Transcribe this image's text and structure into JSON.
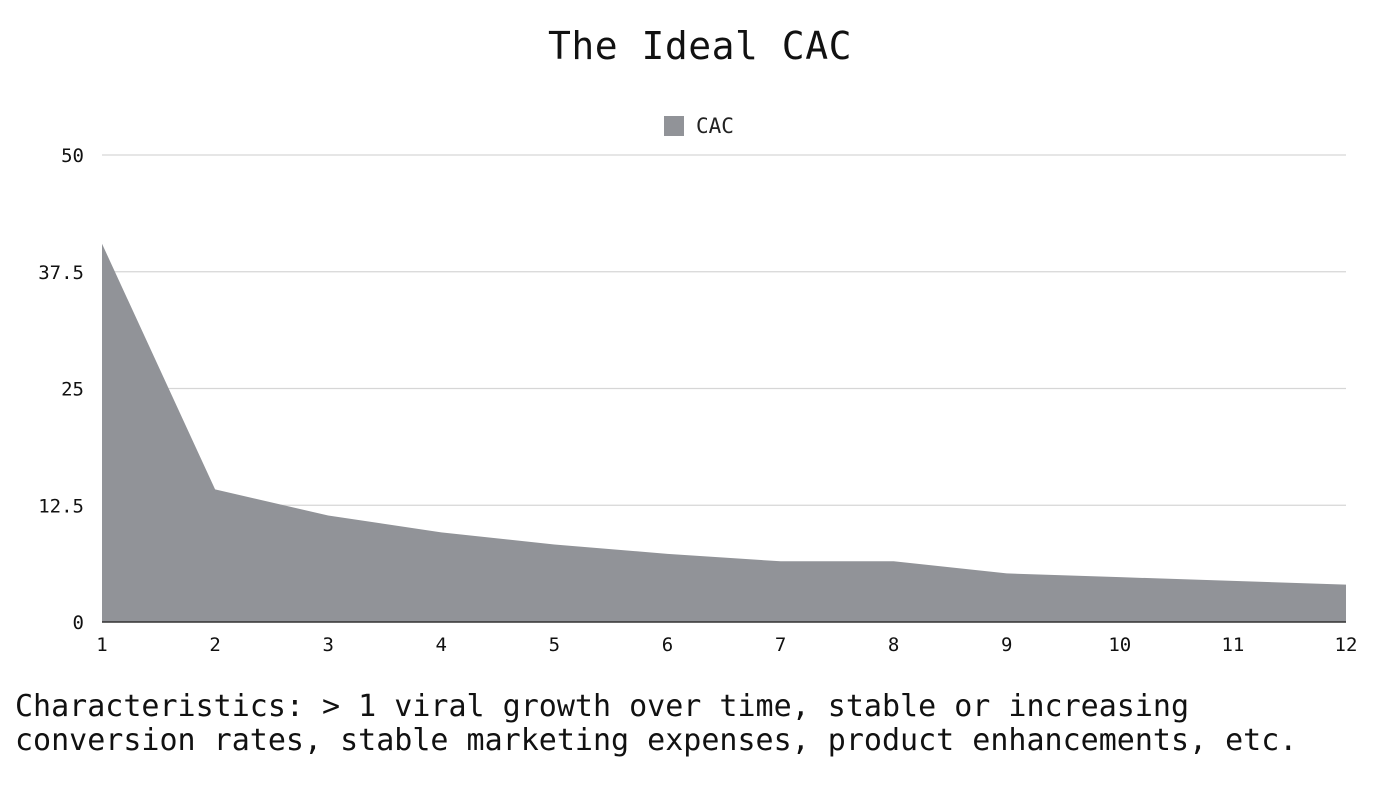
{
  "chart_data": {
    "type": "area",
    "title": "The Ideal CAC",
    "xlabel": "",
    "ylabel": "",
    "x": [
      1,
      2,
      3,
      4,
      5,
      6,
      7,
      8,
      9,
      10,
      11,
      12
    ],
    "series": [
      {
        "name": "CAC",
        "values": [
          40.5,
          14.2,
          11.4,
          9.6,
          8.3,
          7.3,
          6.5,
          6.5,
          5.2,
          4.8,
          4.4,
          4.0
        ],
        "color": "#919398"
      }
    ],
    "ylim": [
      0,
      50
    ],
    "yticks": [
      "0",
      "12.5",
      "25",
      "37.5",
      "50"
    ],
    "xticks": [
      "1",
      "2",
      "3",
      "4",
      "5",
      "6",
      "7",
      "8",
      "9",
      "10",
      "11",
      "12"
    ],
    "grid": true,
    "legend_position": "top-center"
  },
  "caption": "Characteristics: > 1 viral growth over time, stable or increasing conversion rates, stable marketing expenses, product enhancements, etc."
}
